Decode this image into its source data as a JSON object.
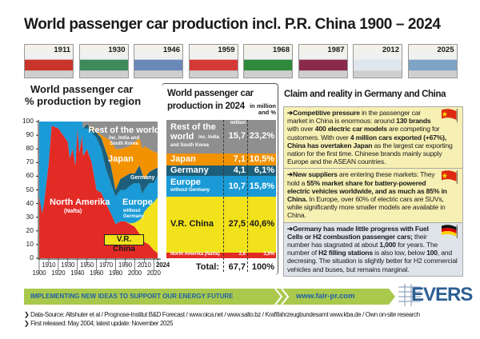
{
  "title": "World passenger car production incl. P.R. China 1900 – 2024",
  "gallery": [
    {
      "year": "1911",
      "color": "#c9342a"
    },
    {
      "year": "1930",
      "color": "#3e8a5a"
    },
    {
      "year": "1946",
      "color": "#6a88b8"
    },
    {
      "year": "1959",
      "color": "#d63a36"
    },
    {
      "year": "1968",
      "color": "#2e8a3a"
    },
    {
      "year": "1987",
      "color": "#8a2a4a"
    },
    {
      "year": "2012",
      "color": "#dfe6ee"
    },
    {
      "year": "2025",
      "color": "#7ea3c4"
    }
  ],
  "left_chart": {
    "title_line1": "World passenger car",
    "title_line2": "% production by region",
    "labels": {
      "rest": "Rest of the world",
      "rest_sub1": "inc. India and",
      "rest_sub2": "South Korea",
      "japan": "Japan",
      "germany": "Germany",
      "na": "North Amerika",
      "na_sub": "(Nafta)",
      "europe": "Europe",
      "europe_sub1": "without",
      "europe_sub2": "Germany",
      "china": "V.R. China"
    }
  },
  "chart_data": {
    "type": "area",
    "stacked": true,
    "ylabel": "%",
    "ylim": [
      0,
      100
    ],
    "yticks": [
      "0",
      "10",
      "20",
      "30",
      "40",
      "50",
      "60",
      "70",
      "80",
      "90",
      "100"
    ],
    "xlim": [
      1900,
      2024
    ],
    "xticks_top": [
      "1910",
      "1930",
      "1950",
      "1970",
      "1990",
      "2010",
      "2024"
    ],
    "xticks_bottom": [
      "1900",
      "1920",
      "1940",
      "1960",
      "1980",
      "2000",
      "2020"
    ],
    "x": [
      1900,
      1903,
      1905,
      1910,
      1913,
      1920,
      1925,
      1930,
      1932,
      1935,
      1938,
      1940,
      1942,
      1945,
      1946,
      1950,
      1955,
      1960,
      1965,
      1970,
      1975,
      1980,
      1985,
      1990,
      1995,
      2000,
      2005,
      2008,
      2010,
      2015,
      2020,
      2024
    ],
    "series": [
      {
        "name": "North Amerika (Nafta)",
        "color": "#e32b26",
        "values": [
          45,
          33,
          40,
          70,
          97,
          95,
          90,
          85,
          73,
          80,
          68,
          95,
          77,
          90,
          75,
          80,
          70,
          50,
          48,
          40,
          33,
          25,
          27,
          27,
          25,
          23,
          18,
          15,
          12,
          10,
          6,
          3.8
        ]
      },
      {
        "name": "V.R. China",
        "color": "#f2e21b",
        "values": [
          0,
          0,
          0,
          0,
          0,
          0,
          0,
          0,
          0,
          0,
          0,
          0,
          0,
          0,
          0,
          0,
          0,
          0,
          0,
          0,
          0,
          0,
          0,
          0,
          0.5,
          3,
          10,
          15,
          22,
          28,
          35,
          40.6
        ]
      },
      {
        "name": "Europe without Germany",
        "color": "#1a9ad6",
        "values": [
          55,
          67,
          60,
          30,
          3,
          5,
          10,
          15,
          27,
          20,
          32,
          5,
          23,
          10,
          20,
          15,
          22,
          38,
          32,
          25,
          22,
          20,
          23,
          23,
          27.5,
          29,
          27,
          17,
          16,
          17,
          14,
          15.8
        ]
      },
      {
        "name": "Germany",
        "color": "#1d5f7a",
        "values": [
          0,
          0,
          0,
          0,
          0,
          0,
          0,
          0,
          0,
          0,
          0,
          0,
          0,
          0,
          0,
          3,
          3,
          4,
          8,
          13,
          13,
          5,
          8,
          10,
          9,
          7,
          13,
          15,
          8,
          8,
          10,
          6.1
        ]
      },
      {
        "name": "Japan",
        "color": "#f39200",
        "values": [
          0,
          0,
          0,
          0,
          0,
          0,
          0,
          0,
          0,
          0,
          0,
          0,
          0,
          0,
          0,
          0,
          1,
          1,
          2,
          10,
          18,
          30,
          22,
          21,
          20,
          23,
          20,
          18,
          24,
          17,
          13,
          10.5
        ]
      },
      {
        "name": "Rest of the world",
        "color": "#8f8f8f",
        "values": [
          0,
          0,
          0,
          0,
          0,
          0,
          0,
          0,
          0,
          0,
          0,
          0,
          0,
          0,
          5,
          2,
          4,
          7,
          10,
          12,
          14,
          20,
          20,
          19,
          18,
          15,
          12,
          20,
          18,
          20,
          22,
          23.2
        ]
      }
    ]
  },
  "table": {
    "title_line1": "World passenger car",
    "title_line2": "production in 2024",
    "unit_line1": "in million",
    "unit_line2": "and %",
    "col_million": "million",
    "rows": [
      {
        "label": "Rest of the",
        "label2": "world",
        "sub": "inc. India",
        "sub2": "and South Korea",
        "million": "15,7",
        "pct": "23,2%",
        "color": "#8f8f8f"
      },
      {
        "label": "Japan",
        "million": "7,1",
        "pct": "10,5%",
        "color": "#f39200"
      },
      {
        "label": "Germany",
        "million": "4,1",
        "pct": "6,1%",
        "color": "#1d5f7a"
      },
      {
        "label": "Europe",
        "sub": "without Germany",
        "million": "10,7",
        "pct": "15,8%",
        "color": "#1a9ad6"
      },
      {
        "label": "V.R. China",
        "million": "27,5",
        "pct": "40,6%",
        "color": "#f2e21b"
      },
      {
        "label": "North Amerika (Nafta)",
        "million": "2,6",
        "pct": "3,8%",
        "color": "#e32b26"
      }
    ],
    "total_label": "Total:",
    "total_million": "67,7",
    "total_pct": "100%"
  },
  "claims": {
    "title": "Claim and reality in Germany and China",
    "boxes": [
      {
        "flag": "china",
        "bg": "#f6f0b4",
        "segments": [
          {
            "t": "Competitive pressure",
            "b": true
          },
          {
            "t": " in the passenger car market in China is enormous: around "
          },
          {
            "t": "130 brands",
            "b": true
          },
          {
            "t": " with over "
          },
          {
            "t": "400 electric car models",
            "b": true
          },
          {
            "t": " are competing for customers. With over "
          },
          {
            "t": "4 million cars exported (+67%), China has overtaken Japan",
            "b": true
          },
          {
            "t": " as the largest car exporting nation for the first time. Chinese brands mainly supply Europe and the ASEAN countries."
          }
        ]
      },
      {
        "flag": "china",
        "bg": "#f6f0b4",
        "segments": [
          {
            "t": "New suppliers",
            "b": true
          },
          {
            "t": " are entering these markets: They hold a "
          },
          {
            "t": "55% market share for battery-powered electric vehicles worldwide, and as much as 85% in China.",
            "b": true
          },
          {
            "t": " In Europe, over 60% of electric cars are SUVs, while significantly more smaller models are available in China."
          }
        ]
      },
      {
        "flag": "germany",
        "bg": "#dfe4ea",
        "segments": [
          {
            "t": "Germany has made little progress with Fuel Cells or H2 combustion passenger cars;",
            "b": true
          },
          {
            "t": " their number has stagnated at about "
          },
          {
            "t": "1,000",
            "b": true
          },
          {
            "t": " for years. The number of "
          },
          {
            "t": "H2 filling stations",
            "b": true
          },
          {
            "t": " is also low, below "
          },
          {
            "t": "100",
            "b": true
          },
          {
            "t": ", and decresing. The situation is slightly better for H2 commercial vehicles and buses, but remains marginal."
          }
        ]
      }
    ]
  },
  "banner": {
    "slogan": "IMPLEMENTING NEW IDEAS TO SUPPORT OUR ENERGY FUTURE",
    "url": "www.fair-pr.com",
    "logo": "EVERS",
    "bg": "#a9c94c",
    "text_color": "#1f5fa8"
  },
  "footer": {
    "source": "Data-Source: Altshuter et al / Prognose-Institut B&D Forecast / www.oica.net / www.salto.bz / Kraftfahrzeugbundesamt www.kba.de / Own on-site research",
    "released": "First released: May 2004; latest update: November 2025"
  }
}
